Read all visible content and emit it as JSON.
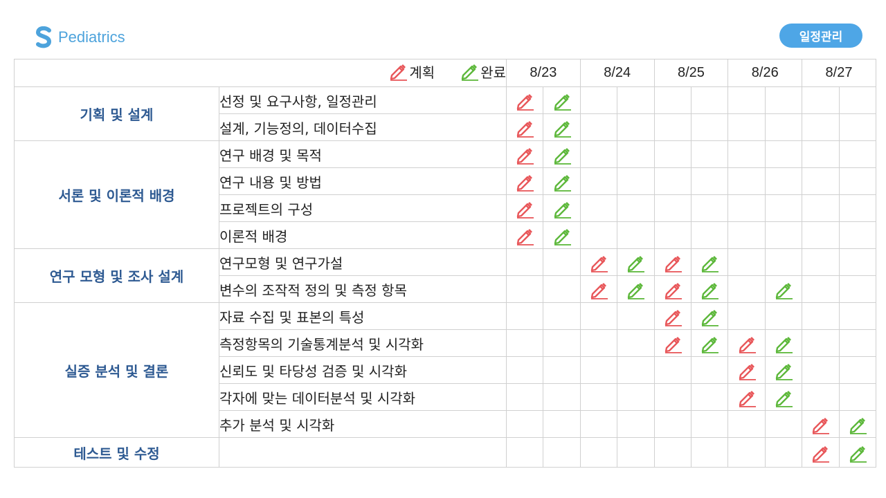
{
  "header": {
    "brand": "Pediatrics",
    "badge": "일정관리"
  },
  "colors": {
    "plan": "#e8575a",
    "done": "#5db83b",
    "category": "#2e5a92",
    "brand": "#4da3dc",
    "badge_bg": "#4ea6e6"
  },
  "legend": {
    "plan_label": "계획",
    "done_label": "완료",
    "plan_icon": "pencil-red-icon",
    "done_icon": "pencil-green-icon"
  },
  "dates": [
    "8/23",
    "8/24",
    "8/25",
    "8/26",
    "8/27"
  ],
  "categories": [
    {
      "name": "기획 및 설계",
      "tasks": [
        {
          "name": "선정 및 요구사항, 일정관리",
          "marks": [
            "p",
            "d",
            "",
            "",
            "",
            "",
            "",
            "",
            "",
            ""
          ]
        },
        {
          "name": "설계, 기능정의, 데이터수집",
          "marks": [
            "p",
            "d",
            "",
            "",
            "",
            "",
            "",
            "",
            "",
            ""
          ]
        }
      ]
    },
    {
      "name": "서론 및 이론적 배경",
      "tasks": [
        {
          "name": "연구 배경 및 목적",
          "marks": [
            "p",
            "d",
            "",
            "",
            "",
            "",
            "",
            "",
            "",
            ""
          ]
        },
        {
          "name": "연구 내용 및 방법",
          "marks": [
            "p",
            "d",
            "",
            "",
            "",
            "",
            "",
            "",
            "",
            ""
          ]
        },
        {
          "name": "프로젝트의 구성",
          "marks": [
            "p",
            "d",
            "",
            "",
            "",
            "",
            "",
            "",
            "",
            ""
          ]
        },
        {
          "name": "이론적 배경",
          "marks": [
            "p",
            "d",
            "",
            "",
            "",
            "",
            "",
            "",
            "",
            ""
          ]
        }
      ]
    },
    {
      "name": "연구 모형 및 조사 설계",
      "tasks": [
        {
          "name": "연구모형 및 연구가설",
          "marks": [
            "",
            "",
            "p",
            "d",
            "p",
            "d",
            "",
            "",
            "",
            ""
          ]
        },
        {
          "name": "변수의 조작적 정의 및 측정 항목",
          "marks": [
            "",
            "",
            "p",
            "d",
            "p",
            "d",
            "",
            "d",
            "",
            ""
          ]
        }
      ]
    },
    {
      "name": "실증 분석 및 결론",
      "tasks": [
        {
          "name": "자료 수집 및 표본의 특성",
          "marks": [
            "",
            "",
            "",
            "",
            "p",
            "d",
            "",
            "",
            "",
            ""
          ]
        },
        {
          "name": "측정항목의 기술통계분석 및 시각화",
          "marks": [
            "",
            "",
            "",
            "",
            "p",
            "d",
            "p",
            "d",
            "",
            ""
          ]
        },
        {
          "name": "신뢰도 및 타당성 검증 및 시각화",
          "marks": [
            "",
            "",
            "",
            "",
            "",
            "",
            "p",
            "d",
            "",
            ""
          ]
        },
        {
          "name": "각자에 맞는 데이터분석 및 시각화",
          "marks": [
            "",
            "",
            "",
            "",
            "",
            "",
            "p",
            "d",
            "",
            ""
          ]
        },
        {
          "name": "추가 분석 및 시각화",
          "marks": [
            "",
            "",
            "",
            "",
            "",
            "",
            "",
            "",
            "p",
            "d"
          ]
        }
      ]
    },
    {
      "name": "테스트 및 수정",
      "tasks": [
        {
          "name": "",
          "marks": [
            "",
            "",
            "",
            "",
            "",
            "",
            "",
            "",
            "p",
            "d"
          ]
        }
      ]
    }
  ]
}
